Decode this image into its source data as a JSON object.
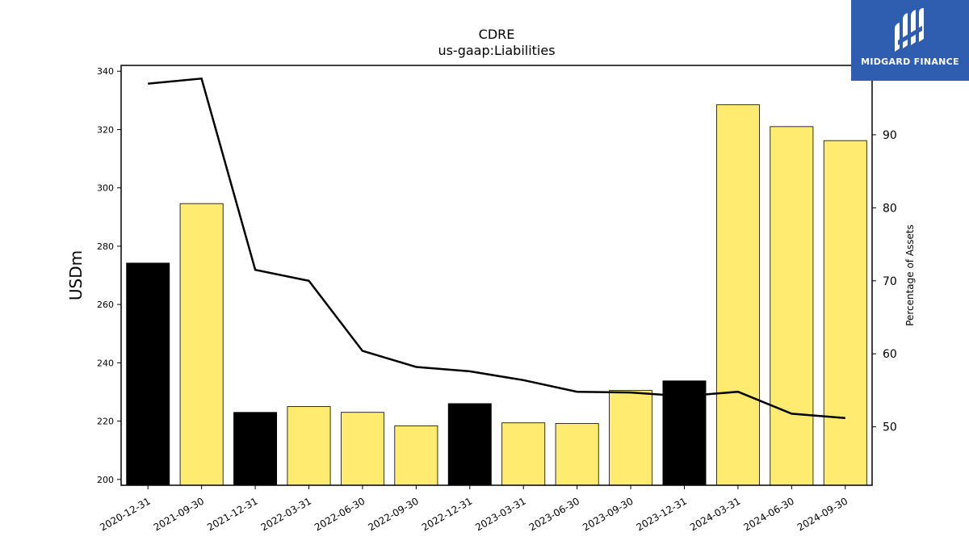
{
  "chart_data": {
    "type": "bar",
    "title": "CDRE",
    "subtitle": "us-gaap:Liabilities",
    "ylabel": "USDm",
    "y2label": "Percentage of Assets",
    "ylim": [
      198,
      342
    ],
    "y2lim": [
      42,
      99.5
    ],
    "yticks": [
      200,
      220,
      240,
      260,
      280,
      300,
      320,
      340
    ],
    "y2ticks": [
      50,
      60,
      70,
      80,
      90
    ],
    "categories": [
      "2020-12-31",
      "2021-09-30",
      "2021-12-31",
      "2022-03-31",
      "2022-06-30",
      "2022-09-30",
      "2022-12-31",
      "2023-03-31",
      "2023-06-30",
      "2023-09-30",
      "2023-12-31",
      "2024-03-31",
      "2024-06-30",
      "2024-09-30"
    ],
    "values": [
      274.2,
      294.6,
      223.0,
      225.0,
      223.0,
      218.4,
      226.0,
      219.4,
      219.2,
      230.5,
      233.8,
      328.5,
      321.0,
      316.2
    ],
    "bar_colors": [
      "#000000",
      "#ffeb70",
      "#000000",
      "#ffeb70",
      "#ffeb70",
      "#ffeb70",
      "#000000",
      "#ffeb70",
      "#ffeb70",
      "#ffeb70",
      "#000000",
      "#ffeb70",
      "#ffeb70",
      "#ffeb70"
    ],
    "line_values": [
      97.0,
      97.7,
      71.5,
      70.0,
      60.4,
      58.2,
      57.6,
      56.4,
      54.8,
      54.7,
      54.2,
      54.8,
      51.8,
      51.2
    ],
    "line_color": "#000000"
  },
  "logo": {
    "text": "MIDGARD FINANCE",
    "bg": "#2f5daf"
  }
}
